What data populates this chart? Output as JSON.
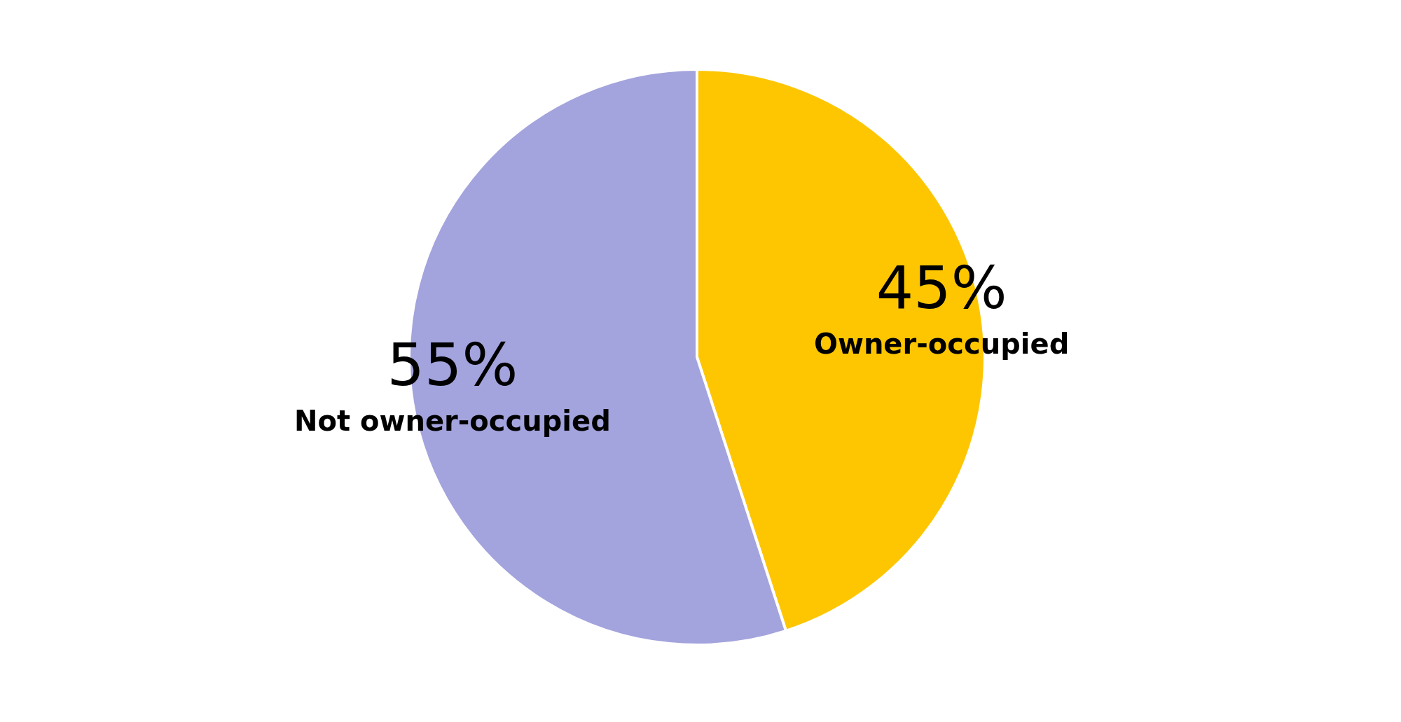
{
  "chart_data": {
    "type": "pie",
    "categories": [
      "Owner-occupied",
      "Not owner-occupied"
    ],
    "values": [
      45,
      55
    ],
    "colors": [
      "#fec600",
      "#a3a3dd"
    ],
    "value_labels": [
      "45%",
      "55%"
    ],
    "legend": false
  }
}
